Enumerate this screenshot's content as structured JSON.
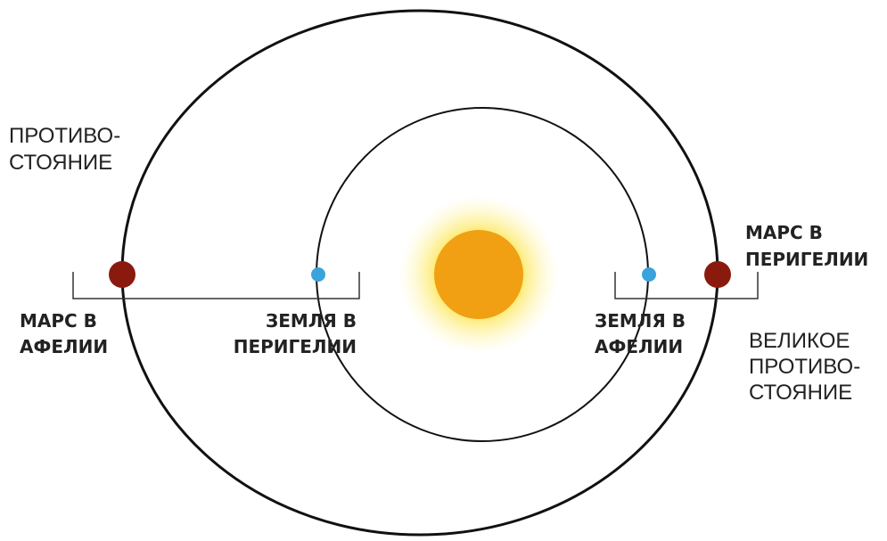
{
  "labels": {
    "opposition": [
      "ПРОТИВО-",
      "СТОЯНИЕ"
    ],
    "mars_aphelion": [
      "МАРС В",
      "АФЕЛИИ"
    ],
    "earth_perihelion": [
      "ЗЕМЛЯ В",
      "ПЕРИГЕЛИИ"
    ],
    "earth_aphelion": [
      "ЗЕМЛЯ В",
      "АФЕЛИИ"
    ],
    "mars_perihelion": [
      "МАРС В",
      "ПЕРИГЕЛИИ"
    ],
    "great_opposition": [
      "ВЕЛИКОЕ",
      "ПРОТИВО-",
      "СТОЯНИЕ"
    ]
  }
}
